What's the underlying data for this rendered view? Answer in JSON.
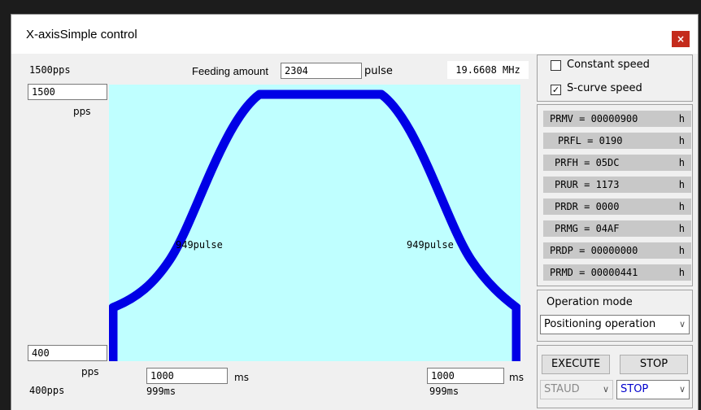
{
  "window": {
    "title": "X-axisSimple control",
    "close_label": "×"
  },
  "top": {
    "max_speed_label": "1500pps",
    "feeding_label": "Feeding amount",
    "feeding_value": "2304",
    "feeding_unit": "pulse",
    "clock": "19.6608 MHz"
  },
  "left": {
    "max_speed_value": "1500",
    "max_speed_unit": "pps",
    "min_speed_value": "400",
    "min_speed_unit": "pps",
    "min_speed_label": "400pps"
  },
  "chart": {
    "accel_pulse": "949pulse",
    "decel_pulse": "949pulse",
    "fill_color": "#bfffff",
    "curve_color": "#0000e6"
  },
  "bottom": {
    "accel_time_value": "1000",
    "accel_time_unit": "ms",
    "accel_time_actual": "999ms",
    "decel_time_value": "1000",
    "decel_time_unit": "ms",
    "decel_time_actual": "999ms"
  },
  "options": {
    "constant_speed": "Constant speed",
    "constant_checked": false,
    "scurve_speed": "S-curve speed",
    "scurve_checked": true
  },
  "registers": [
    {
      "name": "PRMV = 00000900",
      "suffix": "h"
    },
    {
      "name": "PRFL = 0190",
      "suffix": "h"
    },
    {
      "name": "PRFH = 05DC",
      "suffix": "h"
    },
    {
      "name": "PRUR = 1173",
      "suffix": "h"
    },
    {
      "name": "PRDR = 0000",
      "suffix": "h"
    },
    {
      "name": "PRMG = 04AF",
      "suffix": "h"
    },
    {
      "name": "PRDP = 00000000",
      "suffix": "h"
    },
    {
      "name": "PRMD = 00000441",
      "suffix": "h"
    }
  ],
  "operation": {
    "label": "Operation mode",
    "selected": "Positioning operation"
  },
  "controls": {
    "execute_label": "EXECUTE",
    "stop_label": "STOP",
    "status_left": "STAUD",
    "status_right": "STOP"
  }
}
